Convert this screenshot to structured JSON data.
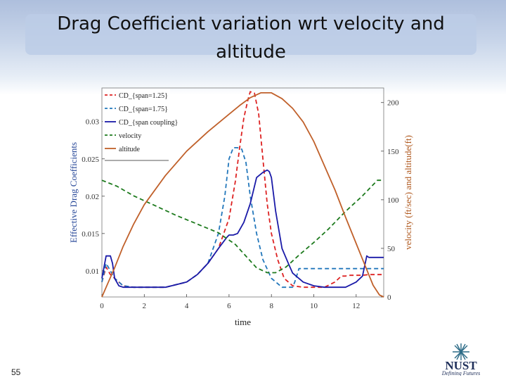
{
  "slide": {
    "title": "Drag  Coefficient variation wrt velocity and altitude",
    "slide_number": "55",
    "logo": {
      "name": "NUST",
      "tagline": "Defining Futures"
    }
  },
  "colors": {
    "cd_span_125": "#dd2222",
    "cd_span_175": "#2277bb",
    "cd_coupling": "#1a1aa8",
    "velocity": "#1d7a1d",
    "altitude": "#c0602a",
    "left_axis": "#2a4a9a",
    "right_axis": "#b05a20"
  },
  "chart_data": {
    "type": "line",
    "xlabel": "time",
    "ylabel_left": "Effective Drag Coefficients",
    "ylabel_right": "velocity (ft/sec) and altitude(ft)",
    "xlim": [
      0,
      13.3
    ],
    "ylim_left": [
      0.0065,
      0.0345
    ],
    "ylim_right": [
      0,
      215
    ],
    "xticks": [
      0,
      2,
      4,
      6,
      8,
      10,
      12
    ],
    "yticks_left": [
      0.01,
      0.015,
      0.02,
      0.025,
      0.03
    ],
    "yticks_left_labels": [
      "0.01",
      "0.015",
      "0.02",
      "0.025",
      "0.03"
    ],
    "yticks_right": [
      0,
      50,
      100,
      150,
      200
    ],
    "legend": {
      "placement": "top-left"
    },
    "series": [
      {
        "name": "CD_{span=1.25}",
        "axis": "left",
        "style": "dashed",
        "x": [
          0,
          0.2,
          0.4,
          0.6,
          1,
          1.5,
          2,
          3,
          4,
          4.5,
          5,
          5.5,
          6,
          6.3,
          6.5,
          6.7,
          6.9,
          7.0,
          7.2,
          7.4,
          7.6,
          7.8,
          8,
          8.3,
          8.6,
          9,
          9.5,
          10,
          10.5,
          11,
          11.3,
          11.5,
          11.7,
          12,
          12.3,
          12.6,
          13,
          13.3
        ],
        "y": [
          0.0085,
          0.0105,
          0.0095,
          0.009,
          0.008,
          0.0078,
          0.0078,
          0.0078,
          0.0085,
          0.0095,
          0.011,
          0.013,
          0.017,
          0.022,
          0.0265,
          0.0305,
          0.033,
          0.034,
          0.0338,
          0.031,
          0.025,
          0.019,
          0.015,
          0.0115,
          0.009,
          0.008,
          0.0078,
          0.0078,
          0.0078,
          0.0085,
          0.0093,
          0.0093,
          0.0094,
          0.0094,
          0.0094,
          0.0095,
          0.0095,
          0.0095
        ]
      },
      {
        "name": "CD_{span=1.75}",
        "axis": "left",
        "style": "dashed",
        "x": [
          0,
          0.2,
          0.4,
          0.6,
          1,
          1.5,
          2,
          3,
          4,
          4.5,
          5,
          5.5,
          5.8,
          6,
          6.2,
          6.4,
          6.6,
          6.8,
          7,
          7.3,
          7.6,
          8,
          8.5,
          9,
          9.1,
          9.3,
          9.5,
          10,
          10.5,
          11,
          11.5,
          12,
          12.5,
          13,
          13.3
        ],
        "y": [
          0.0085,
          0.011,
          0.01,
          0.009,
          0.008,
          0.0078,
          0.0078,
          0.0078,
          0.0085,
          0.0095,
          0.011,
          0.015,
          0.02,
          0.025,
          0.0265,
          0.0265,
          0.0263,
          0.0245,
          0.02,
          0.015,
          0.0115,
          0.009,
          0.0078,
          0.0078,
          0.0085,
          0.0103,
          0.0103,
          0.0103,
          0.0103,
          0.0103,
          0.0103,
          0.0103,
          0.0103,
          0.0103,
          0.0103
        ]
      },
      {
        "name": "CD_{span coupling}",
        "axis": "left",
        "style": "solid",
        "x": [
          0,
          0.2,
          0.4,
          0.5,
          0.6,
          0.8,
          1,
          1.5,
          2,
          3,
          4,
          4.5,
          5,
          5.5,
          5.9,
          6,
          6.2,
          6.4,
          6.7,
          7,
          7.3,
          7.6,
          7.8,
          7.9,
          8,
          8.2,
          8.5,
          8.8,
          9,
          9.5,
          10,
          10.5,
          11,
          11.5,
          12,
          12.3,
          12.5,
          12.6,
          13,
          13.3
        ],
        "y": [
          0.009,
          0.012,
          0.012,
          0.011,
          0.009,
          0.008,
          0.0078,
          0.0078,
          0.0078,
          0.0078,
          0.0085,
          0.0095,
          0.011,
          0.013,
          0.0145,
          0.0148,
          0.0148,
          0.015,
          0.0165,
          0.019,
          0.0225,
          0.0232,
          0.0235,
          0.0233,
          0.0225,
          0.018,
          0.013,
          0.011,
          0.0097,
          0.0085,
          0.008,
          0.0078,
          0.0078,
          0.0078,
          0.0085,
          0.0093,
          0.012,
          0.0118,
          0.0118,
          0.0118
        ]
      },
      {
        "name": "velocity",
        "axis": "right",
        "style": "dashed",
        "x": [
          0,
          0.7,
          1.5,
          2.5,
          3.5,
          4.5,
          5.5,
          6.3,
          6.8,
          7.3,
          7.8,
          8.2,
          8.7,
          9.3,
          10,
          10.7,
          11.5,
          12.3,
          13,
          13.3
        ],
        "y": [
          120,
          114,
          104,
          94,
          84,
          75,
          66,
          54,
          42,
          30,
          25,
          25,
          31,
          43,
          56,
          70,
          88,
          104,
          120,
          120
        ]
      },
      {
        "name": "altitude",
        "axis": "right",
        "style": "solid",
        "x": [
          0,
          0.3,
          0.6,
          1,
          1.5,
          2,
          3,
          4,
          5,
          6,
          6.5,
          7,
          7.5,
          8,
          8.5,
          9,
          9.5,
          10,
          10.5,
          11,
          11.5,
          12,
          12.5,
          12.8,
          13.1,
          13.3
        ],
        "y": [
          0,
          15,
          30,
          52,
          75,
          95,
          125,
          150,
          170,
          188,
          197,
          205,
          210,
          210,
          204,
          194,
          180,
          160,
          135,
          110,
          82,
          55,
          28,
          12,
          2,
          0
        ]
      }
    ]
  }
}
